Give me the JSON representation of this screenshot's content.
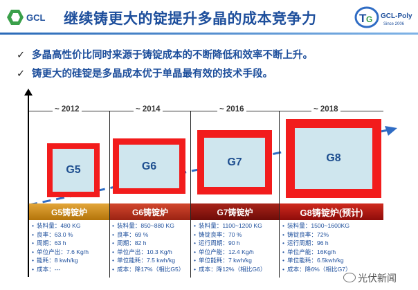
{
  "header": {
    "title": "继续铸更大的锭提升多晶的成本竞争力",
    "logo_left_text": "GCL",
    "logo_right_text": "GCL-Poly",
    "logo_right_sub": "Since 2006"
  },
  "bullets": [
    "多晶高性价比同时来源于铸锭成本的不断降低和效率不断上升。",
    "铸更大的硅锭是多晶成本优于单晶最有效的技术手段。"
  ],
  "generations": [
    {
      "year": "~ 2012",
      "label": "G5",
      "band": "G5铸锭炉",
      "band_color": "#c8860f",
      "specs": [
        "装料量：480 KG",
        "良率：63.0 %",
        "周期：63 h",
        "单位产出：7.6 Kg/h",
        "能耗：8 kwh/kg",
        "成本：---"
      ]
    },
    {
      "year": "~ 2014",
      "label": "G6",
      "band": "G6铸锭炉",
      "band_color": "#b52c1a",
      "specs": [
        "装料量：850~880 KG",
        "良率：69 %",
        "周期：82 h",
        "单位产出：10.3 Kg/h",
        "单位能耗：7.5 kwh/kg",
        "成本：降17%（相比G5）"
      ]
    },
    {
      "year": "~ 2016",
      "label": "G7",
      "band": "G7铸锭炉",
      "band_color": "#8a1410",
      "specs": [
        "装料量：1100~1200 KG",
        "铸锭良率：70 %",
        "运行周期：90 h",
        "单位产能：12.4 Kg/h",
        "单位能耗：7 kwh/kg",
        "成本：降12%（相比G6）"
      ]
    },
    {
      "year": "~ 2018",
      "label": "G8",
      "band": "G8铸锭炉(预计)",
      "band_color": "#a81212",
      "specs": [
        "装料量：1500~1600KG",
        "铸锭良率：72%",
        "运行周期：96 h",
        "单位产能：16Kg/h",
        "单位能耗：6.5kwh/kg",
        "成本：降6%（相比G7）"
      ]
    }
  ],
  "watermark": "光伏新闻",
  "colors": {
    "title": "#1e4f9c",
    "red_frame": "#f21c1c",
    "ingot": "#cfe6ee",
    "trend": "#2f6cc4"
  }
}
